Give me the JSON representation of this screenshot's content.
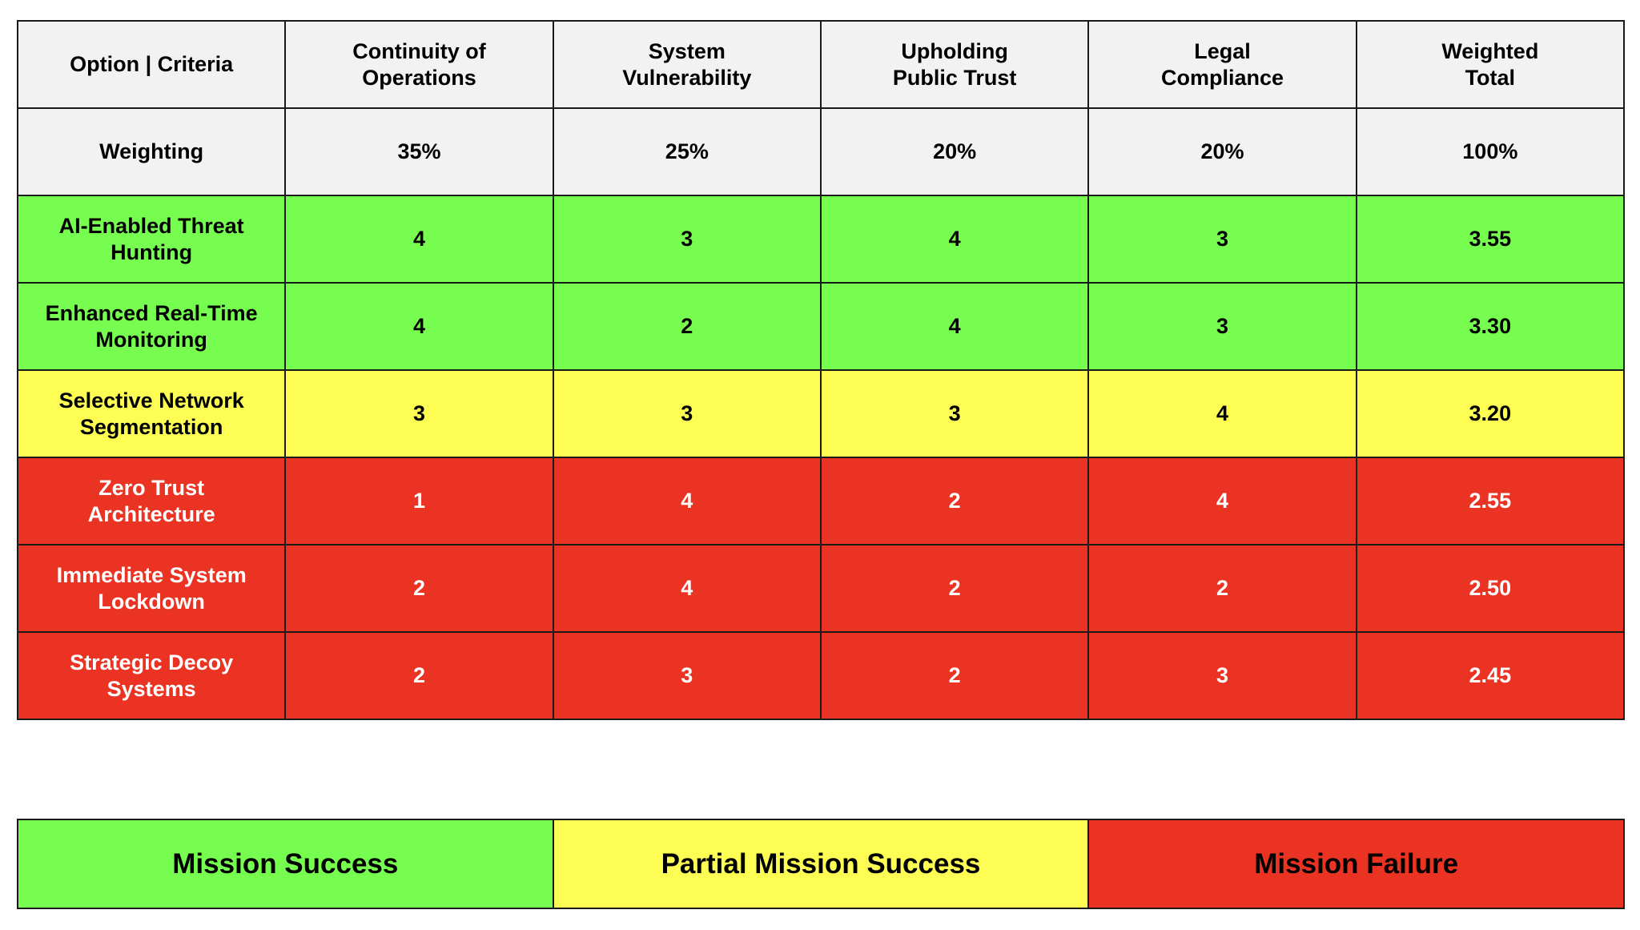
{
  "chart_data": {
    "type": "table",
    "columns": [
      "Option | Criteria",
      "Continuity of Operations",
      "System Vulnerability",
      "Upholding Public Trust",
      "Legal Compliance",
      "Weighted Total"
    ],
    "header_lines": [
      [
        "Option | Criteria"
      ],
      [
        "Continuity of",
        "Operations"
      ],
      [
        "System",
        "Vulnerability"
      ],
      [
        "Upholding",
        "Public Trust"
      ],
      [
        "Legal",
        "Compliance"
      ],
      [
        "Weighted",
        "Total"
      ]
    ],
    "weighting": {
      "label": "Weighting",
      "values": [
        "35%",
        "25%",
        "20%",
        "20%",
        "100%"
      ]
    },
    "rows": [
      {
        "option": "AI-Enabled Threat Hunting",
        "label_lines": [
          "AI-Enabled Threat",
          "Hunting"
        ],
        "values": [
          "4",
          "3",
          "4",
          "3",
          "3.55"
        ],
        "status": "success"
      },
      {
        "option": "Enhanced Real-Time Monitoring",
        "label_lines": [
          "Enhanced Real-Time",
          "Monitoring"
        ],
        "values": [
          "4",
          "2",
          "4",
          "3",
          "3.30"
        ],
        "status": "success"
      },
      {
        "option": "Selective Network Segmentation",
        "label_lines": [
          "Selective Network",
          "Segmentation"
        ],
        "values": [
          "3",
          "3",
          "3",
          "4",
          "3.20"
        ],
        "status": "partial"
      },
      {
        "option": "Zero Trust Architecture",
        "label_lines": [
          "Zero Trust",
          "Architecture"
        ],
        "values": [
          "1",
          "4",
          "2",
          "4",
          "2.55"
        ],
        "status": "failure"
      },
      {
        "option": "Immediate System Lockdown",
        "label_lines": [
          "Immediate System",
          "Lockdown"
        ],
        "values": [
          "2",
          "4",
          "2",
          "2",
          "2.50"
        ],
        "status": "failure"
      },
      {
        "option": "Strategic Decoy Systems",
        "label_lines": [
          "Strategic Decoy",
          "Systems"
        ],
        "values": [
          "2",
          "3",
          "2",
          "3",
          "2.45"
        ],
        "status": "failure"
      }
    ],
    "legend": [
      {
        "label": "Mission Success",
        "status": "success"
      },
      {
        "label": "Partial Mission Success",
        "status": "partial"
      },
      {
        "label": "Mission Failure",
        "status": "failure"
      }
    ],
    "colors": {
      "success": "#77fd50",
      "partial": "#fefd54",
      "failure": "#ea3323",
      "header": "#f2f2f2",
      "border": "#1a1a1a"
    }
  }
}
